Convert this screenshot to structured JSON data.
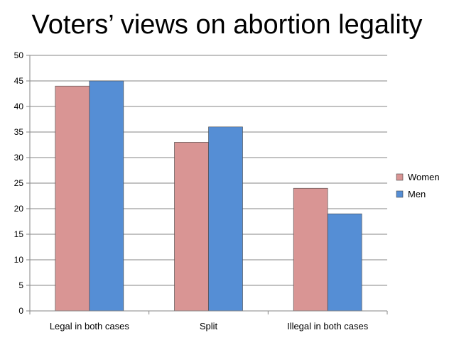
{
  "chart_data": {
    "type": "bar",
    "title": "Voters’ views on abortion legality",
    "categories": [
      "Legal in both cases",
      "Split",
      "Illegal in both cases"
    ],
    "series": [
      {
        "name": "Women",
        "values": [
          44,
          33,
          24
        ],
        "color": "#d99594"
      },
      {
        "name": "Men",
        "values": [
          45,
          36,
          19
        ],
        "color": "#558ed5"
      }
    ],
    "ylim": [
      0,
      50
    ],
    "yticks": [
      0,
      5,
      10,
      15,
      20,
      25,
      30,
      35,
      40,
      45,
      50
    ],
    "grid": true,
    "legend": "right"
  }
}
